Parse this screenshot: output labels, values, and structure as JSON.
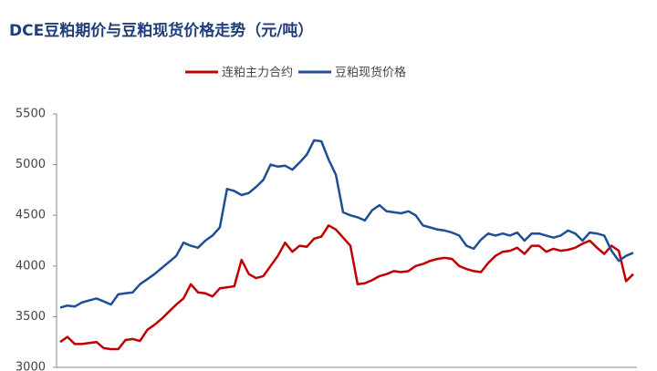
{
  "chart_data": {
    "type": "line",
    "title": "DCE豆粕期价与豆粕现货价格走势（元/吨）",
    "categories": [
      null,
      null,
      null,
      null,
      null,
      null,
      null,
      null,
      null,
      null,
      null,
      null,
      null,
      null,
      null,
      null,
      null,
      null,
      null,
      null,
      null,
      null,
      null,
      null,
      null,
      null,
      null,
      null,
      null,
      null,
      null,
      null,
      null,
      null,
      null,
      null,
      null,
      null,
      null,
      null,
      null,
      null,
      null,
      null,
      null,
      null,
      null,
      null,
      null,
      null,
      null,
      null,
      null,
      null,
      null,
      null,
      null,
      null,
      null,
      null,
      null,
      null,
      null,
      null,
      null,
      null,
      null,
      null,
      null,
      null,
      null,
      null,
      null,
      null,
      null,
      null,
      null,
      null,
      null,
      null
    ],
    "series": [
      {
        "name": "连粕主力合约",
        "color": "#c00000",
        "values": [
          3250,
          3300,
          3230,
          3230,
          3240,
          3250,
          3190,
          3180,
          3180,
          3270,
          3280,
          3260,
          3370,
          3420,
          3480,
          3550,
          3620,
          3680,
          3820,
          3740,
          3730,
          3700,
          3780,
          3790,
          3800,
          4060,
          3920,
          3880,
          3900,
          4000,
          4100,
          4230,
          4140,
          4200,
          4190,
          4270,
          4290,
          4400,
          4360,
          4280,
          4200,
          3820,
          3830,
          3860,
          3900,
          3920,
          3950,
          3940,
          3950,
          4000,
          4020,
          4050,
          4070,
          4080,
          4070,
          4000,
          3970,
          3950,
          3940,
          4030,
          4100,
          4140,
          4150,
          4180,
          4120,
          4200,
          4200,
          4140,
          4170,
          4150,
          4160,
          4180,
          4220,
          4250,
          4180,
          4120,
          4200,
          4150,
          3850,
          3920
        ]
      },
      {
        "name": "豆粕现货价格",
        "color": "#1f4e96",
        "values": [
          3590,
          3610,
          3600,
          3640,
          3660,
          3680,
          3650,
          3620,
          3720,
          3730,
          3740,
          3820,
          3870,
          3920,
          3980,
          4040,
          4100,
          4230,
          4200,
          4180,
          4250,
          4300,
          4380,
          4760,
          4740,
          4700,
          4720,
          4780,
          4850,
          5000,
          4980,
          4990,
          4950,
          5020,
          5100,
          5240,
          5230,
          5050,
          4900,
          4530,
          4500,
          4480,
          4450,
          4550,
          4600,
          4540,
          4530,
          4520,
          4540,
          4500,
          4400,
          4380,
          4360,
          4350,
          4330,
          4300,
          4200,
          4170,
          4260,
          4320,
          4300,
          4320,
          4300,
          4330,
          4250,
          4320,
          4320,
          4300,
          4280,
          4300,
          4350,
          4320,
          4250,
          4330,
          4320,
          4300,
          4150,
          4050,
          4100,
          4130
        ]
      }
    ],
    "ylim": [
      3000,
      5500
    ],
    "yticks": [
      3000,
      3500,
      4000,
      4500,
      5000,
      5500
    ]
  }
}
